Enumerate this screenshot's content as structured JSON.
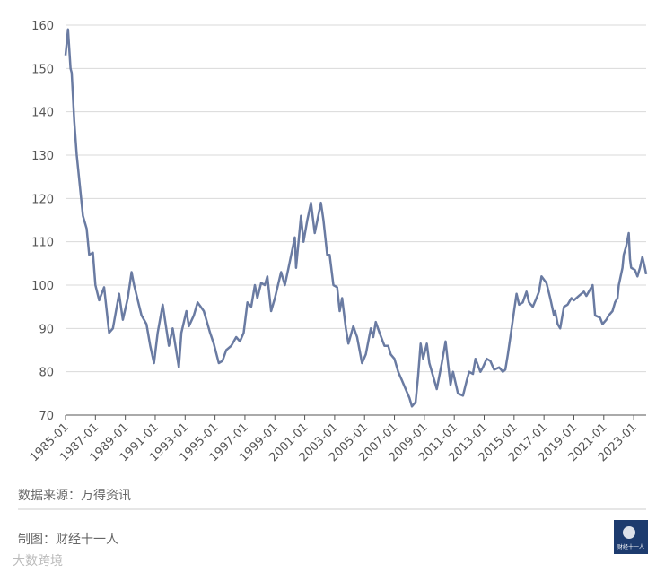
{
  "chart_data": {
    "type": "line",
    "color": "#6a7ba2",
    "grid": true,
    "x": [
      "1985-01",
      "1985-03",
      "1985-05",
      "1985-06",
      "1985-08",
      "1985-10",
      "1986-03",
      "1986-06",
      "1986-08",
      "1986-11",
      "1987-01",
      "1987-04",
      "1987-08",
      "1987-12",
      "1988-03",
      "1988-08",
      "1988-11",
      "1989-03",
      "1989-06",
      "1989-08",
      "1990-02",
      "1990-06",
      "1990-09",
      "1990-12",
      "1991-03",
      "1991-07",
      "1991-12",
      "1992-03",
      "1992-08",
      "1992-10",
      "1993-02",
      "1993-04",
      "1993-08",
      "1993-11",
      "1994-04",
      "1994-09",
      "1994-12",
      "1995-04",
      "1995-07",
      "1995-10",
      "1996-02",
      "1996-06",
      "1996-09",
      "1996-12",
      "1997-03",
      "1997-06",
      "1997-09",
      "1997-11",
      "1998-02",
      "1998-05",
      "1998-07",
      "1998-10",
      "1999-01",
      "1999-06",
      "1999-09",
      "1999-12",
      "2000-05",
      "2000-06",
      "2000-10",
      "2000-12",
      "2001-03",
      "2001-06",
      "2001-09",
      "2002-02",
      "2002-04",
      "2002-07",
      "2002-09",
      "2002-12",
      "2003-03",
      "2003-05",
      "2003-07",
      "2003-10",
      "2003-12",
      "2004-04",
      "2004-07",
      "2004-11",
      "2005-02",
      "2005-06",
      "2005-08",
      "2005-10",
      "2006-01",
      "2006-05",
      "2006-08",
      "2006-10",
      "2007-01",
      "2007-04",
      "2007-07",
      "2007-10",
      "2008-01",
      "2008-03",
      "2008-06",
      "2008-08",
      "2008-10",
      "2008-12",
      "2009-03",
      "2009-05",
      "2009-08",
      "2009-11",
      "2010-03",
      "2010-06",
      "2010-08",
      "2010-10",
      "2010-12",
      "2011-04",
      "2011-08",
      "2011-11",
      "2012-01",
      "2012-04",
      "2012-06",
      "2012-10",
      "2012-12",
      "2013-03",
      "2013-06",
      "2013-09",
      "2014-01",
      "2014-04",
      "2014-06",
      "2014-08",
      "2014-11",
      "2015-01",
      "2015-03",
      "2015-05",
      "2015-08",
      "2015-11",
      "2016-01",
      "2016-04",
      "2016-07",
      "2016-09",
      "2016-11",
      "2017-03",
      "2017-06",
      "2017-09",
      "2017-10",
      "2017-12",
      "2018-02",
      "2018-05",
      "2018-08",
      "2018-11",
      "2019-01",
      "2019-05",
      "2019-09",
      "2019-11",
      "2020-04",
      "2020-06",
      "2020-10",
      "2020-12",
      "2021-03",
      "2021-05",
      "2021-08",
      "2021-10",
      "2021-12",
      "2022-01",
      "2022-04",
      "2022-05",
      "2022-07",
      "2022-09",
      "2022-10",
      "2022-11",
      "2023-02",
      "2023-04",
      "2023-06",
      "2023-08",
      "2023-10",
      "2023-11"
    ],
    "values": [
      153,
      159,
      150,
      149,
      138,
      130,
      116,
      113,
      107,
      107.5,
      100,
      96.5,
      99.5,
      89,
      90,
      98,
      92,
      97,
      103,
      100,
      93,
      91,
      86,
      82,
      89,
      95.5,
      86,
      90,
      81,
      89,
      94,
      90.5,
      93,
      96,
      94,
      89,
      86.5,
      82,
      82.5,
      85,
      86,
      88,
      87,
      89,
      96,
      95,
      100,
      97,
      100.5,
      100,
      102,
      94,
      97,
      103,
      100,
      104,
      111,
      104,
      116,
      110,
      115,
      119,
      112,
      119,
      115,
      107,
      107,
      100,
      99.5,
      94,
      97,
      90,
      86.5,
      90.5,
      88,
      82,
      84,
      90,
      88,
      91.5,
      89,
      86,
      86,
      84,
      83,
      80,
      78,
      76,
      74,
      72,
      73,
      79,
      86.5,
      83,
      86.5,
      82,
      79,
      76,
      82,
      87,
      82,
      77,
      80,
      75,
      74.5,
      78,
      80,
      79.5,
      83,
      80,
      81,
      83,
      82.5,
      80.5,
      81,
      80,
      80.5,
      84,
      90,
      94,
      98,
      95.5,
      96,
      98.5,
      96,
      95,
      97,
      98.5,
      102,
      100.5,
      97,
      93,
      94,
      91,
      90,
      95,
      95.5,
      97,
      96.5,
      97.5,
      98.5,
      97.5,
      100,
      93,
      92.5,
      91,
      92,
      93,
      94,
      96,
      97,
      100,
      104,
      107,
      109,
      112,
      106,
      104,
      103.5,
      102,
      104,
      106.5,
      104,
      102.5
    ],
    "xlim": [
      "1985-01",
      "2023-11"
    ],
    "xticks": [
      "1985-01",
      "1987-01",
      "1989-01",
      "1991-01",
      "1993-01",
      "1995-01",
      "1997-01",
      "1999-01",
      "2001-01",
      "2003-01",
      "2005-01",
      "2007-01",
      "2009-01",
      "2011-01",
      "2013-01",
      "2015-01",
      "2017-01",
      "2019-01",
      "2021-01",
      "2023-01"
    ],
    "ylim": [
      70,
      160
    ],
    "yticks": [
      70,
      80,
      90,
      100,
      110,
      120,
      130,
      140,
      150,
      160
    ]
  },
  "footer": {
    "source": "数据来源：万得资讯",
    "credit": "制图：财经十一人",
    "logo_text": "财经十一人",
    "watermark": "大数跨境"
  }
}
